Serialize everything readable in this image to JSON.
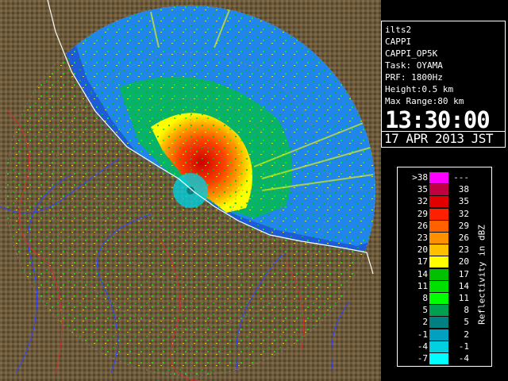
{
  "info": {
    "site": "ilts2",
    "product": "CAPPI",
    "product_id": "CAPPI_OP5K",
    "task": "Task: OYAMA",
    "prf": "PRF: 1800Hz",
    "height": "Height:0.5 km",
    "max_range": "Max Range:80 km",
    "time": "13:30:00",
    "date": "17 APR 2013 JST"
  },
  "legend": {
    "unit": "Reflectivity in dBZ",
    "rows": [
      {
        "lo": ">38",
        "hi": "---",
        "color": "#ff00ff"
      },
      {
        "lo": "35",
        "hi": "38",
        "color": "#c00040"
      },
      {
        "lo": "32",
        "hi": "35",
        "color": "#e00000"
      },
      {
        "lo": "29",
        "hi": "32",
        "color": "#ff2000"
      },
      {
        "lo": "26",
        "hi": "29",
        "color": "#ff6000"
      },
      {
        "lo": "23",
        "hi": "26",
        "color": "#ff9000"
      },
      {
        "lo": "20",
        "hi": "23",
        "color": "#ffc000"
      },
      {
        "lo": "17",
        "hi": "20",
        "color": "#ffff00"
      },
      {
        "lo": "14",
        "hi": "17",
        "color": "#00c000"
      },
      {
        "lo": "11",
        "hi": "14",
        "color": "#00e000"
      },
      {
        "lo": "8",
        "hi": "11",
        "color": "#00ff00"
      },
      {
        "lo": "5",
        "hi": "8",
        "color": "#00a050"
      },
      {
        "lo": "2",
        "hi": "5",
        "color": "#008080"
      },
      {
        "lo": "-1",
        "hi": "2",
        "color": "#00a0c0"
      },
      {
        "lo": "-4",
        "hi": "-1",
        "color": "#00d0e0"
      },
      {
        "lo": "-7",
        "hi": "-4",
        "color": "#00ffff"
      }
    ]
  },
  "colors": {
    "background": "#000000",
    "land": "#6b5a3c",
    "sea": "#1e5bd6",
    "outer_echo": "#22aaff",
    "range_rings": "#888888",
    "coastline": "#ffffff",
    "rivers": "#3344ff",
    "boundaries": "#cc3333"
  }
}
